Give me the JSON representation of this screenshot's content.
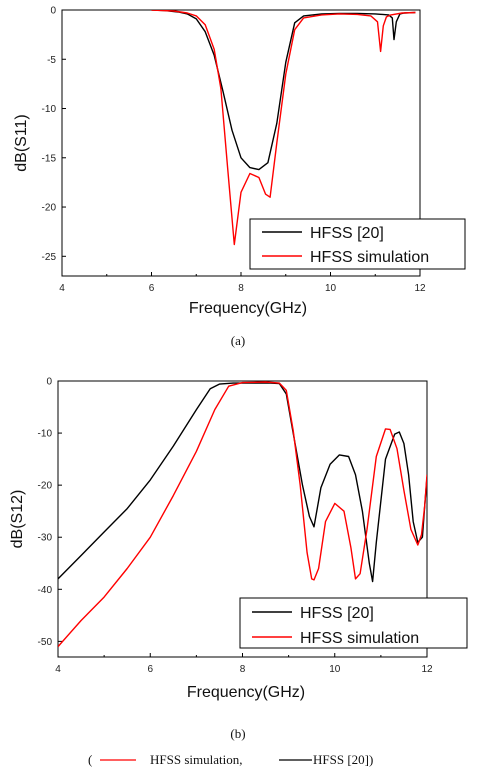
{
  "chart_data": [
    {
      "type": "line",
      "caption": "(a)",
      "xlabel": "Frequency(GHz)",
      "ylabel": "dB(S11)",
      "xlim": [
        4,
        12
      ],
      "ylim": [
        -27,
        0
      ],
      "xticks": [
        4,
        6,
        8,
        10,
        12
      ],
      "yticks": [
        0,
        -5,
        -10,
        -15,
        -20,
        -25
      ],
      "legend_position": "bottom-right",
      "series": [
        {
          "name": "HFSS [20]",
          "color": "#000000",
          "x": [
            6.0,
            6.3,
            6.6,
            6.8,
            7.0,
            7.2,
            7.4,
            7.6,
            7.8,
            8.0,
            8.2,
            8.4,
            8.6,
            8.8,
            9.0,
            9.2,
            9.4,
            9.8,
            10.2,
            10.6,
            11.0,
            11.3,
            11.38,
            11.42,
            11.47,
            11.55,
            11.65,
            11.9
          ],
          "y": [
            0.0,
            -0.05,
            -0.2,
            -0.4,
            -0.9,
            -2.2,
            -4.6,
            -8.3,
            -12.2,
            -15.0,
            -16.0,
            -16.2,
            -15.5,
            -11.5,
            -5.3,
            -1.3,
            -0.6,
            -0.4,
            -0.35,
            -0.35,
            -0.4,
            -0.5,
            -0.8,
            -3.0,
            -1.2,
            -0.4,
            -0.3,
            -0.25
          ]
        },
        {
          "name": "HFSS simulation",
          "color": "#ff0000",
          "x": [
            6.0,
            6.5,
            6.8,
            7.0,
            7.2,
            7.4,
            7.55,
            7.7,
            7.85,
            8.0,
            8.2,
            8.4,
            8.55,
            8.65,
            8.8,
            9.0,
            9.2,
            9.4,
            9.8,
            10.2,
            10.6,
            10.9,
            11.05,
            11.12,
            11.18,
            11.25,
            11.35,
            11.6,
            11.9
          ],
          "y": [
            0.0,
            -0.1,
            -0.3,
            -0.6,
            -1.5,
            -4.0,
            -8.0,
            -16.0,
            -23.8,
            -18.5,
            -16.6,
            -17.0,
            -18.7,
            -19.0,
            -13.5,
            -6.5,
            -2.0,
            -0.8,
            -0.5,
            -0.4,
            -0.45,
            -0.6,
            -1.2,
            -4.2,
            -1.6,
            -0.7,
            -0.5,
            -0.3,
            -0.25
          ]
        }
      ]
    },
    {
      "type": "line",
      "caption": "(b)",
      "xlabel": "Frequency(GHz)",
      "ylabel": "dB(S12)",
      "xlim": [
        4,
        12
      ],
      "ylim": [
        -53,
        0
      ],
      "xticks": [
        4,
        6,
        8,
        10,
        12
      ],
      "yticks": [
        0,
        -10,
        -20,
        -30,
        -40,
        -50
      ],
      "legend_position": "bottom-right",
      "series": [
        {
          "name": "HFSS [20]",
          "color": "#000000",
          "x": [
            4.0,
            4.5,
            5.0,
            5.5,
            6.0,
            6.5,
            7.0,
            7.3,
            7.5,
            7.8,
            8.2,
            8.6,
            8.8,
            8.95,
            9.1,
            9.3,
            9.45,
            9.55,
            9.7,
            9.9,
            10.1,
            10.3,
            10.45,
            10.6,
            10.75,
            10.82,
            10.9,
            11.1,
            11.3,
            11.4,
            11.5,
            11.6,
            11.7,
            11.8,
            11.9,
            11.95,
            12.0
          ],
          "y": [
            -38.0,
            -33.5,
            -29.0,
            -24.5,
            -19.0,
            -12.5,
            -5.5,
            -1.5,
            -0.6,
            -0.4,
            -0.4,
            -0.4,
            -0.5,
            -2.5,
            -10.0,
            -20.0,
            -26.0,
            -28.0,
            -20.5,
            -16.0,
            -14.2,
            -14.5,
            -18.0,
            -25.0,
            -35.0,
            -38.5,
            -31.0,
            -15.0,
            -10.2,
            -9.8,
            -12.0,
            -18.0,
            -27.0,
            -31.0,
            -30.0,
            -24.0,
            -18.5
          ]
        },
        {
          "name": "HFSS simulation",
          "color": "#ff0000",
          "x": [
            4.0,
            4.5,
            5.0,
            5.5,
            6.0,
            6.5,
            7.0,
            7.4,
            7.7,
            8.0,
            8.5,
            8.8,
            8.95,
            9.1,
            9.25,
            9.4,
            9.5,
            9.55,
            9.65,
            9.8,
            10.0,
            10.2,
            10.35,
            10.45,
            10.55,
            10.7,
            10.9,
            11.1,
            11.2,
            11.35,
            11.5,
            11.65,
            11.8,
            11.88,
            11.95,
            12.0
          ],
          "y": [
            -51.0,
            -46.0,
            -41.5,
            -36.0,
            -30.0,
            -22.0,
            -13.5,
            -5.5,
            -1.0,
            -0.3,
            -0.2,
            -0.4,
            -1.8,
            -9.5,
            -20.0,
            -33.0,
            -38.0,
            -38.2,
            -36.0,
            -27.0,
            -23.5,
            -25.0,
            -32.0,
            -38.0,
            -37.0,
            -28.5,
            -14.5,
            -9.2,
            -9.3,
            -13.0,
            -21.0,
            -28.5,
            -31.5,
            -29.5,
            -24.0,
            -18.0
          ]
        }
      ]
    }
  ],
  "footer": {
    "open_paren": "(",
    "label_red": "HFSS simulation,",
    "label_black": "HFSS [20])",
    "red_color": "#ff0000",
    "black_color": "#000000"
  }
}
